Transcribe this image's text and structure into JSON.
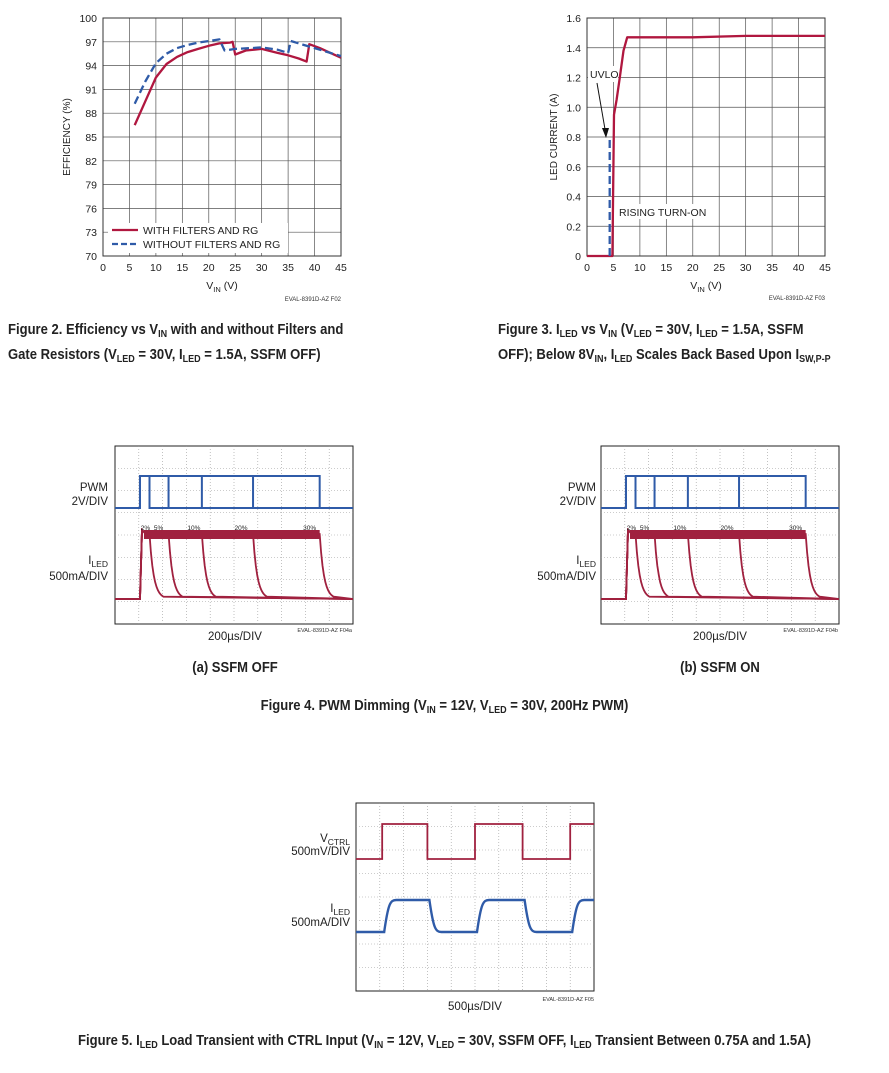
{
  "figure2": {
    "caption_line1": "Figure 2. Efficiency vs V",
    "caption_in": "IN",
    "caption_line1b": " with and without Filters and",
    "caption_line2a": "Gate Resistors (V",
    "caption_led": "LED",
    "caption_line2b": " = 30V, I",
    "caption_line2c": " = 1.5A, SSFM OFF)",
    "code": "EVAL-8391D-AZ F02",
    "chart_data": {
      "type": "line",
      "title": "",
      "xlabel": "VIN (V)",
      "ylabel": "EFFICIENCY (%)",
      "xlim": [
        0,
        45
      ],
      "ylim": [
        70,
        100
      ],
      "xticks": [
        0,
        5,
        10,
        15,
        20,
        25,
        30,
        35,
        40,
        45
      ],
      "yticks": [
        70,
        73,
        76,
        79,
        82,
        85,
        88,
        91,
        94,
        97,
        100
      ],
      "grid": true,
      "legend_position": "bottom-left",
      "series": [
        {
          "name": "WITH FILTERS AND RG",
          "color": "#b0173f",
          "dash": "solid",
          "x": [
            6,
            8,
            10,
            12,
            14,
            16,
            18,
            20,
            22,
            24,
            24.5,
            25,
            27,
            30,
            33,
            35,
            37,
            38.5,
            39,
            41,
            43,
            45
          ],
          "y": [
            86.5,
            89.5,
            92.5,
            94.2,
            95.1,
            95.7,
            96.1,
            96.5,
            96.8,
            96.9,
            97,
            95.4,
            95.9,
            96.1,
            95.6,
            95.3,
            94.9,
            94.5,
            96.7,
            96.2,
            95.6,
            95.0
          ]
        },
        {
          "name": "WITHOUT FILTERS AND RG",
          "color": "#2f5ba8",
          "dash": "dashed",
          "x": [
            6,
            8,
            10,
            12,
            14,
            16,
            18,
            20,
            22,
            23,
            25,
            28,
            30,
            33,
            35,
            35.5,
            38,
            40,
            42,
            45
          ],
          "y": [
            89.2,
            92,
            94.3,
            95.5,
            96.2,
            96.6,
            96.9,
            97.1,
            97.3,
            95.9,
            96.1,
            96.2,
            96.3,
            96.0,
            95.6,
            97.1,
            96.6,
            96.2,
            95.8,
            95.2
          ]
        }
      ]
    }
  },
  "figure3": {
    "caption_line1a": "Figure 3. I",
    "caption_led": "LED",
    "caption_line1b": " vs V",
    "caption_in": "IN",
    "caption_line1c": " (V",
    "caption_line1d": " = 30V, I",
    "caption_line1e": " = 1.5A, SSFM",
    "caption_line2a": "OFF); Below 8V",
    "caption_line2b": ", I",
    "caption_line2c": " Scales Back Based Upon I",
    "caption_sw": "SW,P-P",
    "code": "EVAL-8391D-AZ F03",
    "chart_data": {
      "type": "line",
      "title": "",
      "xlabel": "VIN (V)",
      "ylabel": "LED CURRENT (A)",
      "xlim": [
        0,
        45
      ],
      "ylim": [
        0,
        1.6
      ],
      "xticks": [
        0,
        5,
        10,
        15,
        20,
        25,
        30,
        35,
        40,
        45
      ],
      "yticks": [
        0,
        0.2,
        0.4,
        0.6,
        0.8,
        1.0,
        1.2,
        1.4,
        1.6
      ],
      "grid": true,
      "annotations": [
        "UVLO",
        "RISING TURN-ON"
      ],
      "series": [
        {
          "name": "",
          "color": "#b0173f",
          "dash": "solid",
          "x": [
            0,
            4.8,
            5.1,
            5.6,
            6.2,
            6.9,
            7.6,
            8,
            12,
            20,
            30,
            40,
            45
          ],
          "y": [
            0,
            0,
            0.95,
            1.05,
            1.2,
            1.38,
            1.47,
            1.47,
            1.47,
            1.47,
            1.48,
            1.48,
            1.48
          ]
        },
        {
          "name": "",
          "color": "#2f5ba8",
          "dash": "dashed",
          "x": [
            4.3,
            4.3
          ],
          "y": [
            0,
            0.78
          ]
        }
      ]
    }
  },
  "figure4": {
    "caption_a": "Figure 4. PWM Dimming (V",
    "caption_in": "IN",
    "caption_b": " = 12V, V",
    "caption_led": "LED",
    "caption_c": " = 30V, 200Hz PWM)",
    "panels": [
      {
        "sub": "(a) SSFM OFF",
        "code": "EVAL-8391D-AZ F04a",
        "xscale": "200µs/DIV",
        "ch1_label1": "PWM",
        "ch1_label2": "2V/DIV",
        "ch2_label1": "I",
        "ch2_sub": "LED",
        "ch2_label2": "500mA/DIV",
        "duty_labels": [
          "2%",
          "5%",
          "10%",
          "20%",
          "30%"
        ]
      },
      {
        "sub": "(b) SSFM ON",
        "code": "EVAL-8391D-AZ F04b",
        "xscale": "200µs/DIV",
        "ch1_label1": "PWM",
        "ch1_label2": "2V/DIV",
        "ch2_label1": "I",
        "ch2_sub": "LED",
        "ch2_label2": "500mA/DIV",
        "duty_labels": [
          "2%",
          "5%",
          "10%",
          "20%",
          "30%"
        ]
      }
    ]
  },
  "figure5": {
    "caption_a": "Figure 5. I",
    "caption_led": "LED",
    "caption_b": " Load Transient with CTRL Input (V",
    "caption_in": "IN",
    "caption_c": " = 12V, V",
    "caption_d": " = 30V, SSFM OFF, I",
    "caption_e": " Transient Between 0.75A and 1.5A)",
    "code": "EVAL-8391D-AZ F05",
    "xscale": "500µs/DIV",
    "ch1_label1": "V",
    "ch1_sub": "CTRL",
    "ch1_label2": "500mV/DIV",
    "ch2_label1": "I",
    "ch2_sub": "LED",
    "ch2_label2": "500mA/DIV"
  }
}
